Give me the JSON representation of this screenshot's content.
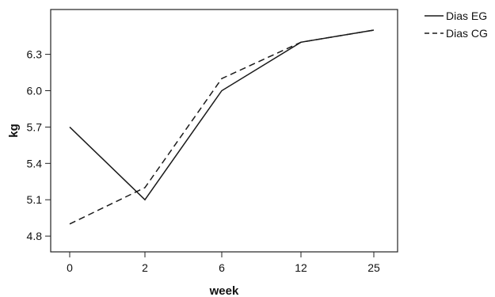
{
  "chart_data": {
    "type": "line",
    "title": "",
    "xlabel": "week",
    "ylabel": "kg",
    "categories": [
      "0",
      "2",
      "6",
      "12",
      "25"
    ],
    "y_ticks": [
      "4.8",
      "5.1",
      "5.4",
      "5.7",
      "6.0",
      "6.3"
    ],
    "ylim": [
      4.67,
      6.67
    ],
    "grid": false,
    "legend_position": "top-right, outside plot",
    "series": [
      {
        "name": "Dias EG",
        "style": "solid",
        "color": "#1a1a1a",
        "values": [
          5.7,
          5.1,
          6.0,
          6.4,
          6.5
        ]
      },
      {
        "name": "Dias CG",
        "style": "dashed",
        "color": "#1a1a1a",
        "values": [
          4.9,
          5.2,
          6.1,
          6.4,
          6.5
        ]
      }
    ]
  }
}
